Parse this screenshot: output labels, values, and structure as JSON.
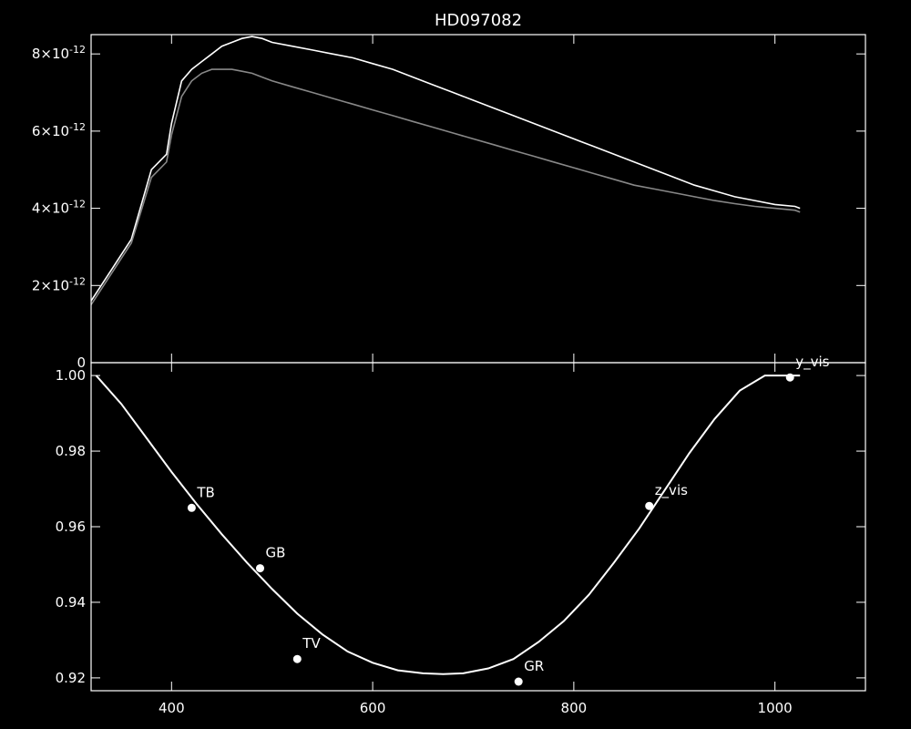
{
  "chart_data": [
    {
      "type": "line",
      "title": "HD097082",
      "xlabel": "",
      "ylabel": "",
      "xlim": [
        320,
        1090
      ],
      "ylim": [
        0,
        8.5e-12
      ],
      "y_tick_values": [
        0,
        2e-12,
        4e-12,
        6e-12,
        8e-12
      ],
      "y_tick_labels": [
        "0",
        "2×10",
        "4×10",
        "6×10",
        "8×10"
      ],
      "y_tick_exponents": [
        "",
        "-12",
        "-12",
        "-12",
        "-12"
      ],
      "series": [
        {
          "color": "#ffffff",
          "x": [
            320,
            340,
            360,
            380,
            395,
            400,
            410,
            420,
            430,
            440,
            450,
            460,
            470,
            480,
            490,
            500,
            520,
            540,
            560,
            580,
            600,
            620,
            640,
            660,
            680,
            700,
            720,
            740,
            760,
            780,
            800,
            820,
            840,
            860,
            880,
            900,
            920,
            940,
            960,
            980,
            1000,
            1020,
            1025
          ],
          "y": [
            1.6e-12,
            2.4e-12,
            3.2e-12,
            5e-12,
            5.4e-12,
            6.2e-12,
            7.3e-12,
            7.6e-12,
            7.8e-12,
            8e-12,
            8.2e-12,
            8.3e-12,
            8.4e-12,
            8.45e-12,
            8.4e-12,
            8.3e-12,
            8.2e-12,
            8.1e-12,
            8e-12,
            7.9e-12,
            7.75e-12,
            7.6e-12,
            7.4e-12,
            7.2e-12,
            7e-12,
            6.8e-12,
            6.6e-12,
            6.4e-12,
            6.2e-12,
            6e-12,
            5.8e-12,
            5.6e-12,
            5.4e-12,
            5.2e-12,
            5e-12,
            4.8e-12,
            4.6e-12,
            4.45e-12,
            4.3e-12,
            4.2e-12,
            4.1e-12,
            4.05e-12,
            4e-12
          ]
        },
        {
          "color": "#888888",
          "x": [
            320,
            340,
            360,
            380,
            395,
            400,
            410,
            420,
            430,
            440,
            450,
            460,
            470,
            480,
            490,
            500,
            520,
            540,
            560,
            580,
            600,
            620,
            640,
            660,
            680,
            700,
            720,
            740,
            760,
            780,
            800,
            820,
            840,
            860,
            880,
            900,
            920,
            940,
            960,
            980,
            1000,
            1020,
            1025
          ],
          "y": [
            1.5e-12,
            2.3e-12,
            3.1e-12,
            4.8e-12,
            5.2e-12,
            5.9e-12,
            6.9e-12,
            7.3e-12,
            7.5e-12,
            7.6e-12,
            7.6e-12,
            7.6e-12,
            7.55e-12,
            7.5e-12,
            7.4e-12,
            7.3e-12,
            7.15e-12,
            7e-12,
            6.85e-12,
            6.7e-12,
            6.55e-12,
            6.4e-12,
            6.25e-12,
            6.1e-12,
            5.95e-12,
            5.8e-12,
            5.65e-12,
            5.5e-12,
            5.35e-12,
            5.2e-12,
            5.05e-12,
            4.9e-12,
            4.75e-12,
            4.6e-12,
            4.5e-12,
            4.4e-12,
            4.3e-12,
            4.2e-12,
            4.12e-12,
            4.05e-12,
            4e-12,
            3.95e-12,
            3.9e-12
          ]
        }
      ],
      "grid": false
    },
    {
      "type": "scatter",
      "title": "",
      "xlabel": "",
      "ylabel": "",
      "xlim": [
        320,
        1090
      ],
      "ylim": [
        0.9166,
        1.0034
      ],
      "x_tick_values": [
        400,
        600,
        800,
        1000
      ],
      "x_tick_labels": [
        "400",
        "600",
        "800",
        "1000"
      ],
      "y_tick_values": [
        0.92,
        0.94,
        0.96,
        0.98,
        1.0
      ],
      "y_tick_labels": [
        "0.92",
        "0.94",
        "0.96",
        "0.98",
        "1.00"
      ],
      "points": [
        {
          "label": "TB",
          "x": 420,
          "y": 0.965
        },
        {
          "label": "GB",
          "x": 488,
          "y": 0.949
        },
        {
          "label": "TV",
          "x": 525,
          "y": 0.925
        },
        {
          "label": "GR",
          "x": 745,
          "y": 0.919
        },
        {
          "label": "z_vis",
          "x": 875,
          "y": 0.9655
        },
        {
          "label": "y_vis",
          "x": 1015,
          "y": 0.9995
        }
      ],
      "fit_curve": {
        "x": [
          325,
          350,
          375,
          400,
          425,
          450,
          475,
          500,
          525,
          550,
          575,
          600,
          625,
          650,
          670,
          690,
          715,
          740,
          765,
          790,
          815,
          840,
          865,
          890,
          915,
          940,
          965,
          990,
          1015,
          1025
        ],
        "y": [
          1.0,
          0.9925,
          0.9835,
          0.9745,
          0.966,
          0.958,
          0.9505,
          0.9435,
          0.937,
          0.9315,
          0.927,
          0.924,
          0.922,
          0.9212,
          0.921,
          0.9212,
          0.9225,
          0.925,
          0.9295,
          0.935,
          0.942,
          0.9505,
          0.9595,
          0.9695,
          0.9795,
          0.9885,
          0.996,
          1.0,
          1.0,
          1.0
        ]
      },
      "grid": false
    }
  ]
}
